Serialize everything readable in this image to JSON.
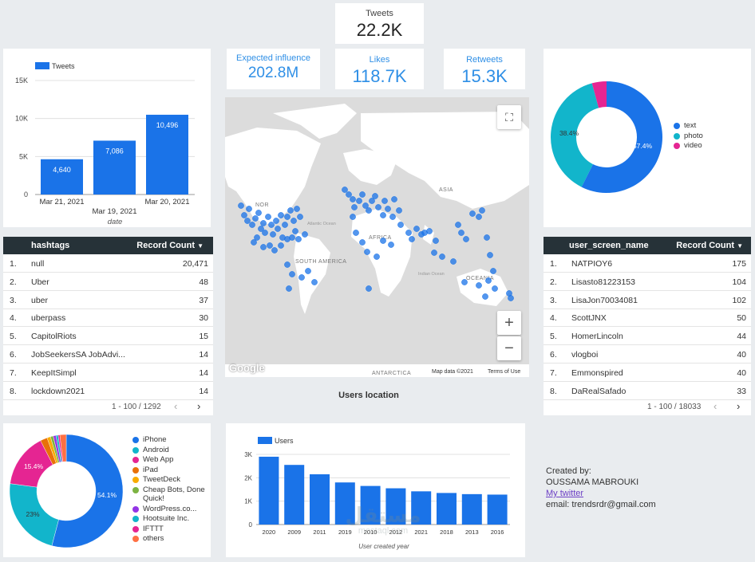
{
  "kpis": {
    "tweets": {
      "label": "Tweets",
      "value": "22.2K"
    },
    "expected_influence": {
      "label": "Expected influence",
      "value": "202.8M"
    },
    "likes": {
      "label": "Likes",
      "value": "118.7K"
    },
    "retweets": {
      "label": "Retweets",
      "value": "15.3K"
    }
  },
  "tweets_chart": {
    "legend": "Tweets",
    "xlabel": "date",
    "yticks": [
      "15K",
      "10K",
      "5K",
      "0"
    ],
    "categories": [
      "Mar 21, 2021",
      "Mar 19, 2021",
      "Mar 20, 2021"
    ],
    "values": [
      4640,
      7086,
      10496
    ],
    "value_labels": [
      "4,640",
      "7,086",
      "10,496"
    ],
    "color": "#1a73e8"
  },
  "type_donut": {
    "slice_labels": [
      "57.4%",
      "38.4%"
    ],
    "legend": [
      {
        "label": "text",
        "color": "#1a73e8"
      },
      {
        "label": "photo",
        "color": "#12b5cb"
      },
      {
        "label": "video",
        "color": "#e52592"
      }
    ]
  },
  "hashtags_table": {
    "col1": "hashtags",
    "col2": "Record Count",
    "rows": [
      {
        "idx": "1.",
        "name": "null",
        "count": "20,471"
      },
      {
        "idx": "2.",
        "name": "Uber",
        "count": "48"
      },
      {
        "idx": "3.",
        "name": "uber",
        "count": "37"
      },
      {
        "idx": "4.",
        "name": "uberpass",
        "count": "30"
      },
      {
        "idx": "5.",
        "name": "CapitolRiots",
        "count": "15"
      },
      {
        "idx": "6.",
        "name": "JobSeekersSA JobAdvi...",
        "count": "14"
      },
      {
        "idx": "7.",
        "name": "KeepItSimpl",
        "count": "14"
      },
      {
        "idx": "8.",
        "name": "lockdown2021",
        "count": "14"
      }
    ],
    "pager": "1 - 100 / 1292"
  },
  "users_table": {
    "col1": "user_screen_name",
    "col2": "Record Count",
    "rows": [
      {
        "idx": "1.",
        "name": "NATPIOY6",
        "count": "175"
      },
      {
        "idx": "2.",
        "name": "Lisasto81223153",
        "count": "104"
      },
      {
        "idx": "3.",
        "name": "LisaJon70034081",
        "count": "102"
      },
      {
        "idx": "4.",
        "name": "ScottJNX",
        "count": "50"
      },
      {
        "idx": "5.",
        "name": "HomerLincoln",
        "count": "44"
      },
      {
        "idx": "6.",
        "name": "vlogboi",
        "count": "40"
      },
      {
        "idx": "7.",
        "name": "Emmonspired",
        "count": "40"
      },
      {
        "idx": "8.",
        "name": "DaRealSafado",
        "count": "33"
      }
    ],
    "pager": "1 - 100 / 18033"
  },
  "map": {
    "caption": "Users location",
    "labels": {
      "asia": "ASIA",
      "africa": "AFRICA",
      "south_america": "SOUTH AMERICA",
      "oceania": "OCEANIA",
      "antarctica": "ANTARCTICA",
      "atlantic": "Atlantic Ocean",
      "indian": "Indian Ocean",
      "na": "NOR"
    },
    "google": "Google",
    "map_data": "Map data ©2021",
    "terms": "Terms of Use",
    "zoom_in": "+",
    "zoom_out": "−"
  },
  "source_donut": {
    "slice_labels": [
      "54.1%",
      "23%",
      "15.4%"
    ],
    "legend": [
      {
        "label": "iPhone",
        "color": "#1a73e8"
      },
      {
        "label": "Android",
        "color": "#12b5cb"
      },
      {
        "label": "Web App",
        "color": "#e52592"
      },
      {
        "label": "iPad",
        "color": "#e8710a"
      },
      {
        "label": "TweetDeck",
        "color": "#f9ab00"
      },
      {
        "label": "Cheap Bots, Done Quick!",
        "color": "#7cb342"
      },
      {
        "label": "WordPress.co...",
        "color": "#9334e6"
      },
      {
        "label": "Hootsuite Inc.",
        "color": "#12b5cb"
      },
      {
        "label": "IFTTT",
        "color": "#e52592"
      },
      {
        "label": "others",
        "color": "#ff7043"
      }
    ]
  },
  "users_chart": {
    "legend": "Users",
    "xlabel": "User created year",
    "yticks": [
      "3K",
      "2K",
      "1K",
      "0"
    ],
    "categories": [
      "2020",
      "2009",
      "2011",
      "2019",
      "2010",
      "2012",
      "2021",
      "2018",
      "2013",
      "2016"
    ],
    "values": [
      2900,
      2550,
      2150,
      1800,
      1650,
      1550,
      1420,
      1350,
      1300,
      1280
    ],
    "ymax": 3000,
    "color": "#1a73e8"
  },
  "credits": {
    "line1": "Created by:",
    "line2": "OUSSAMA MABROUKI",
    "link": "My twitter",
    "email": "email: trendsrdr@gmail.com"
  },
  "watermark": {
    "arabic": "مستقل",
    "latin": "mostaql.com"
  }
}
